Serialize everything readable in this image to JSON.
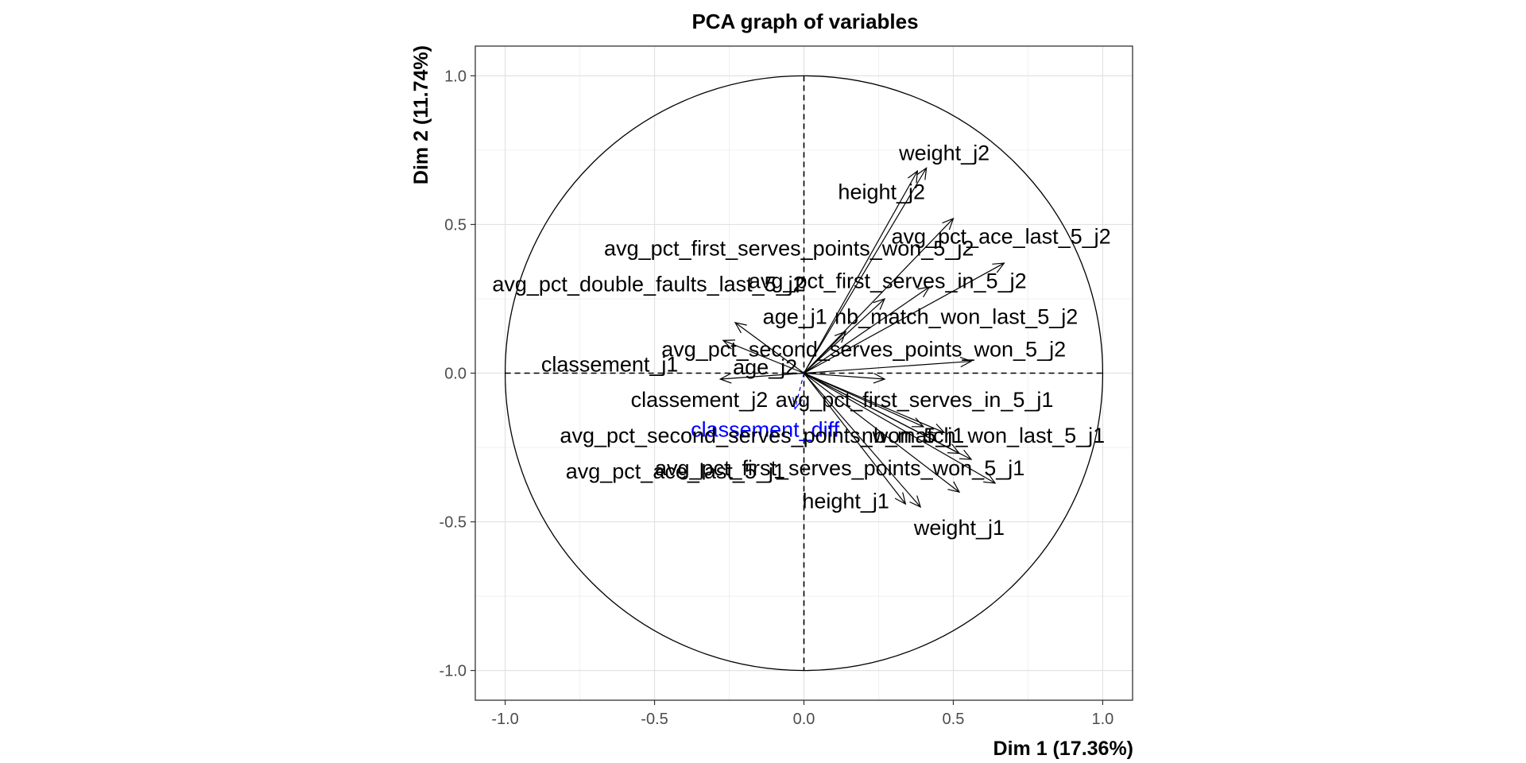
{
  "chart_data": {
    "type": "scatter",
    "title": "PCA graph of variables",
    "xlabel": "Dim 1 (17.36%)",
    "ylabel": "Dim 2 (11.74%)",
    "xlim": [
      -1.1,
      1.1
    ],
    "ylim": [
      -1.1,
      1.1
    ],
    "x_ticks": [
      "-1.0",
      "-0.5",
      "0.0",
      "0.5",
      "1.0"
    ],
    "y_ticks": [
      "-1.0",
      "-0.5",
      "0.0",
      "0.5",
      "1.0"
    ],
    "grid": true,
    "unit_circle": true,
    "variables": [
      {
        "name": "weight_j2",
        "x": 0.41,
        "y": 0.69,
        "color": "#000000",
        "supplementary": false
      },
      {
        "name": "height_j2",
        "x": 0.38,
        "y": 0.68,
        "color": "#000000",
        "supplementary": false
      },
      {
        "name": "avg_pct_ace_last_5_j2",
        "x": 0.5,
        "y": 0.52,
        "color": "#000000",
        "supplementary": false
      },
      {
        "name": "avg_pct_first_serves_points_won_5_j2",
        "x": 0.67,
        "y": 0.37,
        "color": "#000000",
        "supplementary": false
      },
      {
        "name": "avg_pct_first_serves_in_5_j2",
        "x": 0.42,
        "y": 0.29,
        "color": "#000000",
        "supplementary": false
      },
      {
        "name": "nb_match_won_last_5_j2",
        "x": 0.27,
        "y": 0.25,
        "color": "#000000",
        "supplementary": false
      },
      {
        "name": "avg_pct_second_serves_points_won_5_j2",
        "x": 0.56,
        "y": 0.04,
        "color": "#000000",
        "supplementary": false
      },
      {
        "name": "avg_pct_double_faults_last_5_j2",
        "x": -0.23,
        "y": 0.17,
        "color": "#000000",
        "supplementary": false
      },
      {
        "name": "age_j1",
        "x": 0.14,
        "y": 0.14,
        "color": "#000000",
        "supplementary": false
      },
      {
        "name": "age_j2",
        "x": -0.27,
        "y": 0.11,
        "color": "#000000",
        "supplementary": false
      },
      {
        "name": "classement_j1",
        "x": -0.28,
        "y": -0.02,
        "color": "#000000",
        "supplementary": false
      },
      {
        "name": "classement_j2",
        "x": 0.27,
        "y": -0.02,
        "color": "#000000",
        "supplementary": false
      },
      {
        "name": "avg_pct_first_serves_in_5_j1",
        "x": 0.4,
        "y": -0.18,
        "color": "#000000",
        "supplementary": false
      },
      {
        "name": "avg_pct_double_faults_last_5_j1",
        "x": 0.47,
        "y": -0.2,
        "color": "#000000",
        "supplementary": false
      },
      {
        "name": "nb_match_won_last_5_j1",
        "x": 0.52,
        "y": -0.27,
        "color": "#000000",
        "supplementary": false
      },
      {
        "name": "avg_pct_second_serves_points_won_5_j1",
        "x": 0.56,
        "y": -0.29,
        "color": "#000000",
        "supplementary": false
      },
      {
        "name": "avg_pct_first_serves_points_won_5_j1",
        "x": 0.64,
        "y": -0.37,
        "color": "#000000",
        "supplementary": false
      },
      {
        "name": "avg_pct_ace_last_5_j1",
        "x": 0.52,
        "y": -0.4,
        "color": "#000000",
        "supplementary": false
      },
      {
        "name": "height_j1",
        "x": 0.34,
        "y": -0.44,
        "color": "#000000",
        "supplementary": false
      },
      {
        "name": "weight_j1",
        "x": 0.39,
        "y": -0.45,
        "color": "#000000",
        "supplementary": false
      },
      {
        "name": "classement_diff",
        "x": -0.03,
        "y": -0.12,
        "color": "#0000ff",
        "supplementary": true
      }
    ],
    "labels": [
      {
        "text": "weight_j2",
        "x": 0.47,
        "y": 0.74,
        "color": "#000000"
      },
      {
        "text": "height_j2",
        "x": 0.26,
        "y": 0.61,
        "color": "#000000"
      },
      {
        "text": "avg_pct_ace_last_5_j2",
        "x": 0.66,
        "y": 0.46,
        "color": "#000000"
      },
      {
        "text": "avg_pct_first_serves_points_won_5_j2",
        "x": -0.05,
        "y": 0.42,
        "color": "#000000"
      },
      {
        "text": "avg_pct_first_serves_in_5_j2",
        "x": 0.28,
        "y": 0.31,
        "color": "#000000"
      },
      {
        "text": "nb_match_won_last_5_j2",
        "x": 0.51,
        "y": 0.19,
        "color": "#000000"
      },
      {
        "text": "avg_pct_second_serves_points_won_5_j2",
        "x": 0.2,
        "y": 0.08,
        "color": "#000000"
      },
      {
        "text": "avg_pct_double_faults_last_5_j2",
        "x": -0.52,
        "y": 0.3,
        "color": "#000000"
      },
      {
        "text": "age_j1",
        "x": -0.03,
        "y": 0.19,
        "color": "#000000"
      },
      {
        "text": "age_j2",
        "x": -0.13,
        "y": 0.02,
        "color": "#000000"
      },
      {
        "text": "classement_j1",
        "x": -0.65,
        "y": 0.03,
        "color": "#000000"
      },
      {
        "text": "classement_j2",
        "x": -0.35,
        "y": -0.09,
        "color": "#000000"
      },
      {
        "text": "avg_pct_first_serves_in_5_j1",
        "x": 0.37,
        "y": -0.09,
        "color": "#000000"
      },
      {
        "text": "classement_diff",
        "x": -0.13,
        "y": -0.19,
        "color": "#0000ff"
      },
      {
        "text": "nb_match_won_last_5_j1",
        "x": 0.6,
        "y": -0.21,
        "color": "#000000"
      },
      {
        "text": "avg_pct_second_serves_points_won_5_j1",
        "x": -0.14,
        "y": -0.21,
        "color": "#000000"
      },
      {
        "text": "avg_pct_first_serves_points_won_5_j1",
        "x": 0.12,
        "y": -0.32,
        "color": "#000000"
      },
      {
        "text": "avg_pct_ace_last_5_j1",
        "x": -0.43,
        "y": -0.33,
        "color": "#000000"
      },
      {
        "text": "height_j1",
        "x": 0.14,
        "y": -0.43,
        "color": "#000000"
      },
      {
        "text": "weight_j1",
        "x": 0.52,
        "y": -0.52,
        "color": "#000000"
      }
    ]
  }
}
